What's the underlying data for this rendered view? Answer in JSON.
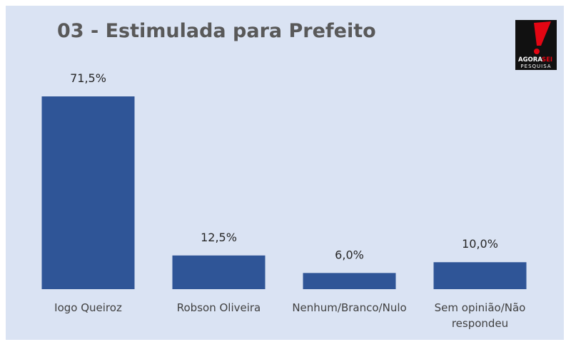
{
  "chart_data": {
    "type": "bar",
    "title": "03 - Estimulada para Prefeito",
    "categories": [
      "Iogo Queiroz",
      "Robson Oliveira",
      "Nenhum/Branco/Nulo",
      "Sem opinião/Não respondeu"
    ],
    "values": [
      71.5,
      12.5,
      6.0,
      10.0
    ],
    "value_labels": [
      "71,5%",
      "12,5%",
      "6,0%",
      "10,0%"
    ],
    "color": "#2f5597"
  },
  "logo": {
    "brand": "AGORA",
    "accent": "SEI",
    "sub": "PESQUISA"
  }
}
